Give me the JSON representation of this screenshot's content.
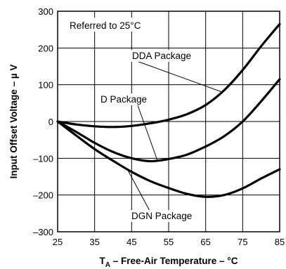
{
  "chart_data": {
    "type": "line",
    "xlabel_main": "T",
    "xlabel_sub": "A",
    "xlabel_rest": " – Free-Air Temperature – °C",
    "ylabel": "Input Offset Voltage – µ V",
    "xlim": [
      25,
      85
    ],
    "ylim": [
      -300,
      300
    ],
    "x_ticks": [
      25,
      35,
      45,
      55,
      65,
      75,
      85
    ],
    "y_ticks": [
      -300,
      -200,
      -100,
      0,
      100,
      200,
      300
    ],
    "x_tick_labels": [
      "25",
      "35",
      "45",
      "55",
      "65",
      "75",
      "85"
    ],
    "y_tick_labels": [
      "–300",
      "–200",
      "–100",
      "0",
      "100",
      "200",
      "300"
    ],
    "grid": true,
    "annotation": "Referred to 25°C",
    "series": [
      {
        "name": "DDA Package",
        "x": [
          25,
          30,
          35,
          40,
          45,
          50,
          55,
          60,
          65,
          70,
          75,
          80,
          85
        ],
        "y": [
          0,
          -8,
          -13,
          -15,
          -12,
          -5,
          5,
          20,
          45,
          85,
          140,
          205,
          265
        ]
      },
      {
        "name": "D Package",
        "x": [
          25,
          30,
          35,
          40,
          45,
          50,
          55,
          60,
          65,
          70,
          75,
          80,
          85
        ],
        "y": [
          0,
          -28,
          -58,
          -83,
          -100,
          -108,
          -102,
          -90,
          -68,
          -40,
          0,
          55,
          115
        ]
      },
      {
        "name": "DGN Package",
        "x": [
          25,
          30,
          35,
          40,
          45,
          50,
          55,
          60,
          65,
          70,
          75,
          80,
          85
        ],
        "y": [
          0,
          -38,
          -75,
          -107,
          -137,
          -162,
          -181,
          -197,
          -205,
          -200,
          -182,
          -155,
          -130
        ]
      }
    ],
    "labels": [
      {
        "series": "DDA Package",
        "text": "DDA Package"
      },
      {
        "series": "D Package",
        "text": "D Package"
      },
      {
        "series": "DGN Package",
        "text": "DGN Package"
      }
    ]
  }
}
